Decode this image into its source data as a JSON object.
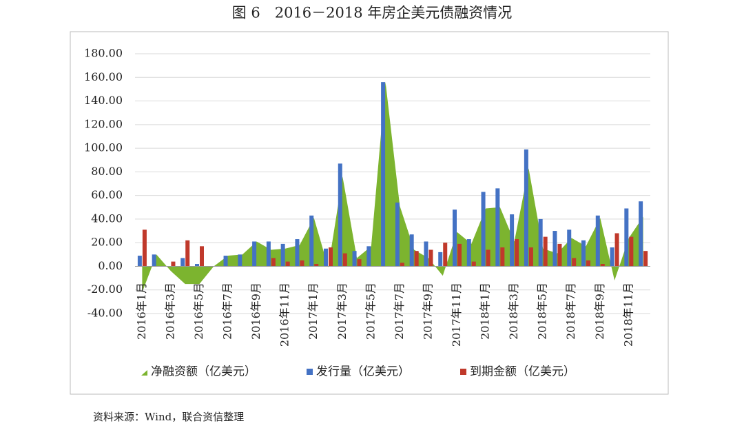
{
  "title": "图 6　2016－2018 年房企美元债融资情况",
  "source": "资料来源：Wind，联合资信整理",
  "chart_data": {
    "type": "bar-area",
    "categories": [
      "2016年1月",
      null,
      "2016年3月",
      null,
      "2016年5月",
      null,
      "2016年7月",
      null,
      "2016年9月",
      null,
      "2016年11月",
      null,
      "2017年1月",
      null,
      "2017年3月",
      null,
      "2017年5月",
      null,
      "2017年7月",
      null,
      "2017年9月",
      null,
      "2017年11月",
      null,
      "2018年1月",
      null,
      "2018年3月",
      null,
      "2018年5月",
      null,
      "2018年7月",
      null,
      "2018年9月",
      null,
      "2018年11月",
      null
    ],
    "series": [
      {
        "name": "净融资额（亿美元）",
        "color": "#7cb42f",
        "kind": "area",
        "values": [
          -22,
          10,
          -4,
          -15,
          -15,
          0,
          9,
          10,
          21,
          14,
          15,
          18,
          41,
          -1,
          76,
          7,
          17,
          156,
          51,
          14,
          7,
          -8,
          29,
          19,
          49,
          50,
          21,
          83,
          15,
          11,
          24,
          17,
          41,
          -12,
          24,
          42
        ]
      },
      {
        "name": "发行量（亿美元）",
        "color": "#4472c4",
        "kind": "bar",
        "values": [
          9,
          10,
          0,
          7,
          2,
          0,
          9,
          10,
          21,
          21,
          19,
          23,
          43,
          15,
          87,
          13,
          17,
          156,
          54,
          27,
          21,
          12,
          48,
          23,
          63,
          66,
          44,
          99,
          40,
          30,
          31,
          22,
          43,
          16,
          49,
          55
        ]
      },
      {
        "name": "到期金额（亿美元）",
        "color": "#c0392b",
        "kind": "bar",
        "values": [
          31,
          0,
          4,
          22,
          17,
          0,
          0,
          0,
          0,
          7,
          4,
          5,
          2,
          16,
          11,
          6,
          0,
          0,
          3,
          13,
          14,
          20,
          19,
          4,
          14,
          16,
          23,
          16,
          25,
          19,
          7,
          5,
          2,
          28,
          25,
          13
        ]
      }
    ],
    "ylim": [
      -40,
      180
    ],
    "yticks": [
      {
        "value": -40,
        "label": "-40.00"
      },
      {
        "value": -20,
        "label": "-20.00"
      },
      {
        "value": 0,
        "label": "0.00"
      },
      {
        "value": 20,
        "label": "20.00"
      },
      {
        "value": 40,
        "label": "40.00"
      },
      {
        "value": 60,
        "label": "60.00"
      },
      {
        "value": 80,
        "label": "80.00"
      },
      {
        "value": 100,
        "label": "100.00"
      },
      {
        "value": 120,
        "label": "120.00"
      },
      {
        "value": 140,
        "label": "140.00"
      },
      {
        "value": 160,
        "label": "160.00"
      },
      {
        "value": 180,
        "label": "180.00"
      }
    ],
    "grid": true
  }
}
